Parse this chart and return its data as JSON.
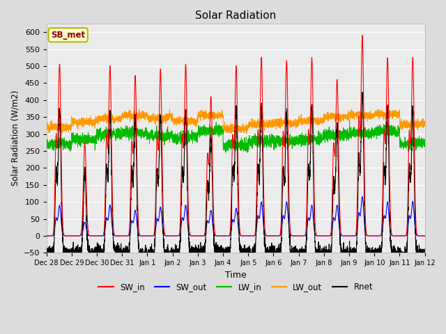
{
  "title": "Solar Radiation",
  "xlabel": "Time",
  "ylabel": "Solar Radiation (W/m2)",
  "ylim": [
    -50,
    625
  ],
  "yticks": [
    -50,
    0,
    50,
    100,
    150,
    200,
    250,
    300,
    350,
    400,
    450,
    500,
    550,
    600
  ],
  "bg_color": "#dcdcdc",
  "plot_bg": "#ebebeb",
  "annotation": "SB_met",
  "legend_items": [
    "SW_in",
    "SW_out",
    "LW_in",
    "LW_out",
    "Rnet"
  ],
  "line_colors": {
    "SW_in": "#ff0000",
    "SW_out": "#0000ff",
    "LW_in": "#00bb00",
    "LW_out": "#ff9900",
    "Rnet": "#000000"
  },
  "num_days": 15,
  "SW_in_peaks": [
    505,
    275,
    500,
    470,
    490,
    505,
    410,
    500,
    525,
    515,
    525,
    460,
    590,
    525,
    525
  ],
  "SW_out_peaks": [
    90,
    40,
    90,
    75,
    85,
    90,
    75,
    80,
    100,
    100,
    90,
    90,
    115,
    100,
    100
  ],
  "LW_in_base": [
    270,
    285,
    300,
    305,
    295,
    290,
    310,
    265,
    280,
    278,
    285,
    298,
    302,
    308,
    272
  ],
  "LW_out_base": [
    320,
    335,
    345,
    355,
    348,
    338,
    355,
    315,
    330,
    333,
    338,
    350,
    355,
    358,
    328
  ],
  "tick_labels": [
    "Dec 28",
    "Dec 29",
    "Dec 30",
    "Dec 31",
    "Jan 1",
    "Jan 2",
    "Jan 3",
    "Jan 4",
    "Jan 5",
    "Jan 6",
    "Jan 7",
    "Jan 8",
    "Jan 9",
    "Jan 10",
    "Jan 11",
    "Jan 12"
  ]
}
